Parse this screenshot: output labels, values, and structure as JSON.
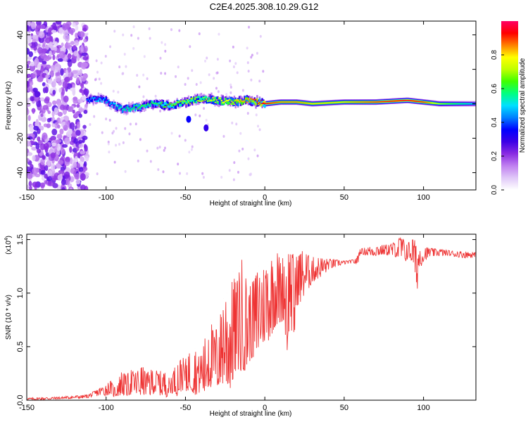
{
  "figure_title": "C2E4.2025.308.10.29.G12",
  "chart_data": [
    {
      "type": "heatmap",
      "name": "spectrogram",
      "xlabel": "Height of straight line (km)",
      "ylabel": "Frequency (Hz)",
      "xlim": [
        -150,
        133
      ],
      "ylim": [
        -50,
        48
      ],
      "xticks": [
        -150,
        -100,
        -50,
        0,
        50,
        100
      ],
      "yticks": [
        -40,
        -20,
        0,
        20,
        40
      ],
      "colorbar": {
        "label": "Normalized spectral amplitude",
        "range": [
          0,
          1
        ],
        "ticks": [
          "0.0",
          "0.2",
          "0.4",
          "0.6",
          "0.8"
        ],
        "colors": [
          "#ffffff",
          "#e0c8f8",
          "#c080f0",
          "#8a2be2",
          "#3c00e6",
          "#0000ff",
          "#0080ff",
          "#00e0ff",
          "#00ff80",
          "#40ff00",
          "#c0ff00",
          "#ffff00",
          "#ff8000",
          "#ff0000",
          "#ff0064"
        ]
      },
      "ridge": {
        "description": "narrow high-amplitude band near 0 Hz",
        "x": [
          -112,
          -105,
          -100,
          -95,
          -90,
          -80,
          -70,
          -60,
          -50,
          -40,
          -30,
          -20,
          -10,
          0,
          10,
          20,
          30,
          50,
          70,
          90,
          100,
          110,
          120,
          133
        ],
        "freq": [
          2,
          3,
          2,
          -1,
          -3,
          -2,
          0,
          -1,
          1,
          3,
          2,
          1,
          2,
          0,
          1,
          1,
          0,
          1,
          1,
          2,
          1,
          0,
          0,
          0
        ],
        "peak_amplitude": [
          0.4,
          0.5,
          0.45,
          0.5,
          0.55,
          0.6,
          0.6,
          0.65,
          0.7,
          0.7,
          0.75,
          0.8,
          0.85,
          0.95,
          0.85,
          0.85,
          0.8,
          0.8,
          0.9,
          0.95,
          0.9,
          0.7,
          0.6,
          0.5
        ]
      },
      "noise_region": {
        "description": "broadband scattered low-amplitude content",
        "x_range": [
          -150,
          -112
        ],
        "freq_range": [
          -50,
          48
        ]
      },
      "secondary_features": [
        {
          "x": -48,
          "freq": -9,
          "amplitude": 0.35
        },
        {
          "x": -37,
          "freq": -14,
          "amplitude": 0.3
        }
      ]
    },
    {
      "type": "line",
      "name": "snr",
      "xlabel": "Height of straight line (km)",
      "ylabel": "SNR (10 * v/v)",
      "y_multiplier_label": "(x10",
      "y_multiplier_exponent": "4",
      "y_multiplier_close": ")",
      "xlim": [
        -150,
        133
      ],
      "ylim": [
        0,
        1.55
      ],
      "xticks": [
        -150,
        -100,
        -50,
        0,
        50,
        100
      ],
      "yticks": [
        "0.0",
        "0.5",
        "1.0",
        "1.5"
      ],
      "color": "#ee3333",
      "series": [
        {
          "name": "SNR",
          "x": [
            -150,
            -130,
            -112,
            -108,
            -103,
            -100,
            -97,
            -95,
            -92,
            -90,
            -87,
            -85,
            -82,
            -80,
            -77,
            -75,
            -72,
            -70,
            -67,
            -65,
            -62,
            -60,
            -57,
            -55,
            -52,
            -50,
            -48,
            -46,
            -44,
            -42,
            -40,
            -38,
            -37,
            -36,
            -34,
            -32,
            -30,
            -28,
            -26,
            -24,
            -22,
            -20,
            -18,
            -16,
            -15,
            -14,
            -12,
            -10,
            -8,
            -6,
            -4,
            -2,
            0,
            2,
            4,
            6,
            8,
            10,
            12,
            14,
            16,
            18,
            20,
            22,
            24,
            26,
            28,
            30,
            32,
            35,
            38,
            40,
            45,
            50,
            55,
            58,
            59,
            60,
            62,
            65,
            70,
            75,
            80,
            84,
            86,
            88,
            90,
            92,
            94,
            95,
            96,
            97,
            100,
            104,
            110,
            115,
            120,
            125,
            133
          ],
          "low": [
            0.0,
            0.01,
            0.02,
            0.03,
            0.05,
            0.04,
            0.06,
            0.03,
            0.04,
            0.05,
            0.04,
            0.05,
            0.06,
            0.03,
            0.05,
            0.05,
            0.04,
            0.06,
            0.05,
            0.04,
            0.03,
            0.05,
            0.08,
            0.03,
            0.1,
            0.05,
            0.1,
            0.08,
            0.05,
            0.06,
            0.08,
            0.05,
            0.04,
            0.1,
            0.12,
            0.15,
            0.1,
            0.14,
            0.15,
            0.12,
            0.1,
            0.18,
            0.25,
            0.3,
            0.2,
            0.3,
            0.25,
            0.35,
            0.4,
            0.35,
            0.45,
            0.5,
            0.55,
            0.55,
            0.6,
            0.68,
            0.7,
            0.72,
            0.75,
            0.4,
            0.8,
            0.4,
            0.88,
            0.9,
            0.95,
            1.0,
            1.05,
            1.1,
            1.12,
            1.15,
            1.18,
            1.22,
            1.25,
            1.27,
            1.28,
            1.27,
            1.29,
            1.37,
            1.36,
            1.35,
            1.35,
            1.36,
            1.35,
            1.33,
            1.3,
            1.28,
            1.32,
            1.3,
            1.25,
            1.1,
            1.02,
            1.2,
            1.3,
            1.34,
            1.35,
            1.35,
            1.34,
            1.33,
            1.33
          ],
          "high": [
            0.02,
            0.03,
            0.05,
            0.08,
            0.12,
            0.15,
            0.18,
            0.12,
            0.2,
            0.28,
            0.22,
            0.3,
            0.25,
            0.28,
            0.32,
            0.25,
            0.28,
            0.3,
            0.26,
            0.28,
            0.25,
            0.2,
            0.3,
            0.35,
            0.4,
            0.38,
            0.45,
            0.42,
            0.48,
            0.4,
            0.45,
            0.55,
            0.65,
            0.8,
            0.75,
            0.6,
            0.7,
            0.8,
            0.95,
            1.0,
            0.9,
            1.2,
            1.05,
            1.25,
            1.35,
            1.28,
            1.15,
            1.05,
            1.1,
            1.15,
            1.25,
            1.2,
            1.25,
            1.3,
            1.32,
            1.35,
            1.38,
            1.3,
            1.35,
            1.38,
            1.4,
            1.36,
            1.34,
            1.38,
            1.4,
            1.37,
            1.35,
            1.34,
            1.33,
            1.33,
            1.32,
            1.32,
            1.31,
            1.3,
            1.31,
            1.33,
            1.39,
            1.41,
            1.42,
            1.43,
            1.44,
            1.45,
            1.46,
            1.5,
            1.54,
            1.48,
            1.47,
            1.49,
            1.52,
            1.46,
            1.4,
            1.44,
            1.43,
            1.42,
            1.41,
            1.4,
            1.39,
            1.39,
            1.38
          ]
        }
      ]
    }
  ]
}
